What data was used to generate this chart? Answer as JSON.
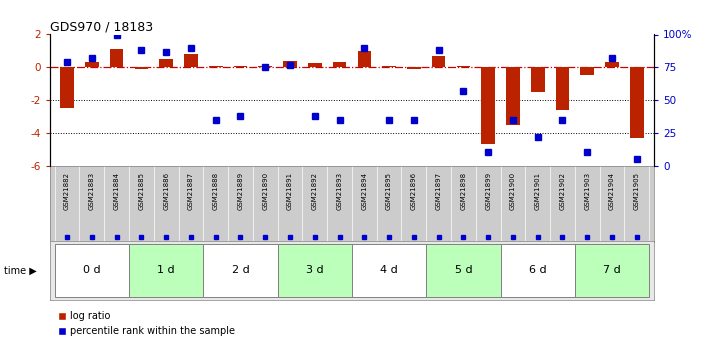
{
  "title": "GDS970 / 18183",
  "samples": [
    "GSM21882",
    "GSM21883",
    "GSM21884",
    "GSM21885",
    "GSM21886",
    "GSM21887",
    "GSM21888",
    "GSM21889",
    "GSM21890",
    "GSM21891",
    "GSM21892",
    "GSM21893",
    "GSM21894",
    "GSM21895",
    "GSM21896",
    "GSM21897",
    "GSM21898",
    "GSM21899",
    "GSM21900",
    "GSM21901",
    "GSM21902",
    "GSM21903",
    "GSM21904",
    "GSM21905"
  ],
  "log_ratio": [
    -2.5,
    0.3,
    1.1,
    -0.1,
    0.5,
    0.8,
    0.05,
    0.05,
    0.05,
    0.4,
    0.25,
    0.3,
    1.0,
    0.05,
    -0.1,
    0.7,
    0.05,
    -4.7,
    -3.5,
    -1.5,
    -2.6,
    -0.5,
    0.3,
    -4.3
  ],
  "percentile_rank": [
    79,
    82,
    100,
    88,
    87,
    90,
    35,
    38,
    75,
    77,
    38,
    35,
    90,
    35,
    35,
    88,
    57,
    10,
    35,
    22,
    35,
    10,
    82,
    5
  ],
  "time_groups": [
    {
      "label": "0 d",
      "start": 0,
      "end": 3,
      "color": "#ffffff"
    },
    {
      "label": "1 d",
      "start": 3,
      "end": 6,
      "color": "#bbffbb"
    },
    {
      "label": "2 d",
      "start": 6,
      "end": 9,
      "color": "#ffffff"
    },
    {
      "label": "3 d",
      "start": 9,
      "end": 12,
      "color": "#bbffbb"
    },
    {
      "label": "4 d",
      "start": 12,
      "end": 15,
      "color": "#ffffff"
    },
    {
      "label": "5 d",
      "start": 15,
      "end": 18,
      "color": "#bbffbb"
    },
    {
      "label": "6 d",
      "start": 18,
      "end": 21,
      "color": "#ffffff"
    },
    {
      "label": "7 d",
      "start": 21,
      "end": 24,
      "color": "#bbffbb"
    }
  ],
  "ylim_left": [
    -6,
    2
  ],
  "ylim_right": [
    0,
    100
  ],
  "yticks_left": [
    2,
    0,
    -2,
    -4,
    -6
  ],
  "yticks_right": [
    100,
    75,
    50,
    25,
    0
  ],
  "ytick_labels_right": [
    "100%",
    "75",
    "50",
    "25",
    "0"
  ],
  "dotted_lines": [
    -2,
    -4
  ],
  "bar_color_red": "#bb2200",
  "bar_color_blue": "#0000cc",
  "zero_line_color": "#cc0000",
  "background_color": "#ffffff",
  "sample_bg_color": "#cccccc",
  "legend_red": "log ratio",
  "legend_blue": "percentile rank within the sample",
  "time_arrow_text": "time",
  "bar_width": 0.55
}
